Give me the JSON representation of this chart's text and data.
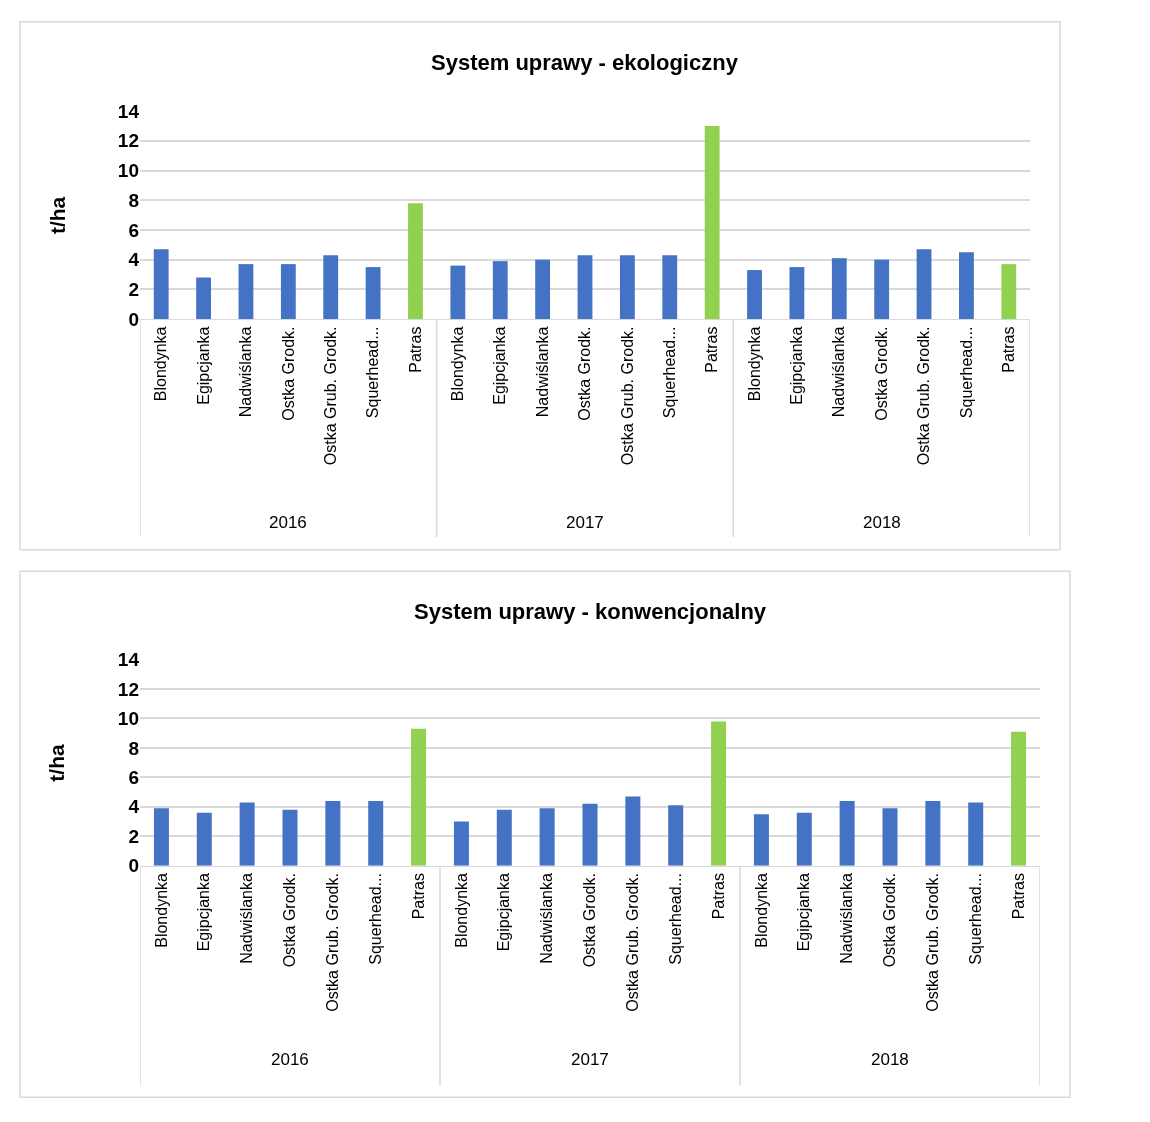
{
  "chart_data": [
    {
      "type": "bar",
      "title": "System uprawy - ekologiczny",
      "ylabel": "t/ha",
      "categories": [
        "Blondynka",
        "Egipcjanka",
        "Nadwiślanka",
        "Ostka Grodk.",
        "Ostka Grub. Grodk.",
        "Squerhead...",
        "Patras",
        "Blondynka",
        "Egipcjanka",
        "Nadwiślanka",
        "Ostka Grodk.",
        "Ostka Grub. Grodk.",
        "Squerhead...",
        "Patras",
        "Blondynka",
        "Egipcjanka",
        "Nadwiślanka",
        "Ostka Grodk.",
        "Ostka Grub. Grodk.",
        "Squerhead...",
        "Patras"
      ],
      "values": [
        4.7,
        2.8,
        3.7,
        3.7,
        4.3,
        3.5,
        7.8,
        3.6,
        3.9,
        4.0,
        4.3,
        4.3,
        4.3,
        13.0,
        3.3,
        3.5,
        4.1,
        4.0,
        4.7,
        4.5,
        3.7
      ],
      "colors": [
        "#4472c4",
        "#4472c4",
        "#4472c4",
        "#4472c4",
        "#4472c4",
        "#4472c4",
        "#92d050",
        "#4472c4",
        "#4472c4",
        "#4472c4",
        "#4472c4",
        "#4472c4",
        "#4472c4",
        "#92d050",
        "#4472c4",
        "#4472c4",
        "#4472c4",
        "#4472c4",
        "#4472c4",
        "#4472c4",
        "#92d050"
      ],
      "annotations": [
        "2016",
        "2017",
        "2018"
      ],
      "ylim": [
        0,
        14
      ],
      "yticks": [
        0,
        2,
        4,
        6,
        8,
        10,
        12,
        14
      ],
      "grid": "y"
    },
    {
      "type": "bar",
      "title": "System uprawy - konwencjonalny",
      "ylabel": "t/ha",
      "categories": [
        "Blondynka",
        "Egipcjanka",
        "Nadwiślanka",
        "Ostka Grodk.",
        "Ostka Grub. Grodk.",
        "Squerhead...",
        "Patras",
        "Blondynka",
        "Egipcjanka",
        "Nadwiślanka",
        "Ostka Grodk.",
        "Ostka Grub. Grodk.",
        "Squerhead...",
        "Patras",
        "Blondynka",
        "Egipcjanka",
        "Nadwiślanka",
        "Ostka Grodk.",
        "Ostka Grub. Grodk.",
        "Squerhead...",
        "Patras"
      ],
      "values": [
        3.9,
        3.6,
        4.3,
        3.8,
        4.4,
        4.4,
        9.3,
        3.0,
        3.8,
        3.9,
        4.2,
        4.7,
        4.1,
        9.8,
        3.5,
        3.6,
        4.4,
        3.9,
        4.4,
        4.3,
        9.1
      ],
      "colors": [
        "#4472c4",
        "#4472c4",
        "#4472c4",
        "#4472c4",
        "#4472c4",
        "#4472c4",
        "#92d050",
        "#4472c4",
        "#4472c4",
        "#4472c4",
        "#4472c4",
        "#4472c4",
        "#4472c4",
        "#92d050",
        "#4472c4",
        "#4472c4",
        "#4472c4",
        "#4472c4",
        "#4472c4",
        "#4472c4",
        "#92d050"
      ],
      "annotations": [
        "2016",
        "2017",
        "2018"
      ],
      "ylim": [
        0,
        14
      ],
      "yticks": [
        0,
        2,
        4,
        6,
        8,
        10,
        12,
        14
      ],
      "grid": "y"
    }
  ]
}
